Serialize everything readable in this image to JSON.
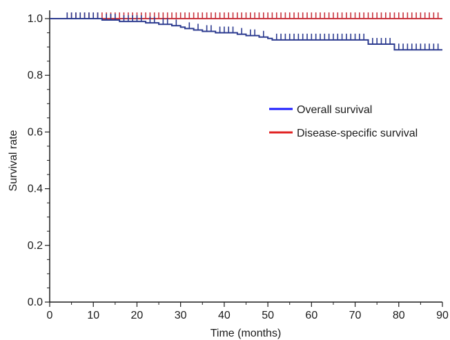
{
  "chart_data": {
    "type": "line",
    "title": "",
    "xlabel": "Time (months)",
    "ylabel": "Survival rate",
    "xlim": [
      0,
      90
    ],
    "ylim": [
      0,
      1.0
    ],
    "x_ticks": [
      0,
      10,
      20,
      30,
      40,
      50,
      60,
      70,
      80,
      90
    ],
    "x_tick_labels": [
      "0",
      "10",
      "20",
      "30",
      "40",
      "50",
      "60",
      "70",
      "80",
      "90"
    ],
    "y_ticks": [
      0.0,
      0.2,
      0.4,
      0.6,
      0.8,
      1.0
    ],
    "y_tick_labels": [
      "0.0",
      "0.2",
      "0.4",
      "0.6",
      "0.8",
      "1.0"
    ],
    "grid": false,
    "legend_position": "right",
    "series": [
      {
        "name": "Overall survival",
        "color": "#2b3a8f",
        "legend_color": "#1a1aff",
        "points": [
          [
            0,
            1.0
          ],
          [
            12,
            1.0
          ],
          [
            12,
            0.995
          ],
          [
            16,
            0.995
          ],
          [
            16,
            0.99
          ],
          [
            22,
            0.99
          ],
          [
            22,
            0.985
          ],
          [
            25,
            0.985
          ],
          [
            25,
            0.98
          ],
          [
            28,
            0.98
          ],
          [
            28,
            0.975
          ],
          [
            30,
            0.975
          ],
          [
            30,
            0.97
          ],
          [
            31,
            0.97
          ],
          [
            31,
            0.965
          ],
          [
            33,
            0.965
          ],
          [
            33,
            0.96
          ],
          [
            35,
            0.96
          ],
          [
            35,
            0.955
          ],
          [
            38,
            0.955
          ],
          [
            38,
            0.95
          ],
          [
            43,
            0.95
          ],
          [
            43,
            0.945
          ],
          [
            45,
            0.945
          ],
          [
            45,
            0.94
          ],
          [
            48,
            0.94
          ],
          [
            48,
            0.935
          ],
          [
            50,
            0.935
          ],
          [
            50,
            0.93
          ],
          [
            51,
            0.93
          ],
          [
            51,
            0.925
          ],
          [
            73,
            0.925
          ],
          [
            73,
            0.91
          ],
          [
            79,
            0.91
          ],
          [
            79,
            0.89
          ],
          [
            90,
            0.89
          ]
        ],
        "censor_x": [
          4,
          5,
          6,
          7,
          8,
          9,
          10,
          11,
          13,
          14,
          15,
          17,
          18,
          19,
          20,
          21,
          23,
          24,
          26,
          27,
          29,
          32,
          34,
          36,
          37,
          39,
          40,
          41,
          42,
          44,
          46,
          47,
          49,
          52,
          53,
          54,
          55,
          56,
          57,
          58,
          59,
          60,
          61,
          62,
          63,
          64,
          65,
          66,
          67,
          68,
          69,
          70,
          71,
          72,
          74,
          75,
          76,
          77,
          78,
          80,
          81,
          82,
          83,
          84,
          85,
          86,
          87,
          88,
          89
        ]
      },
      {
        "name": "Disease-specific survival",
        "color": "#c8323c",
        "legend_color": "#e02020",
        "points": [
          [
            0,
            1.0
          ],
          [
            90,
            1.0
          ]
        ],
        "censor_x": [
          4,
          5,
          6,
          7,
          8,
          9,
          10,
          11,
          12,
          13,
          14,
          15,
          16,
          17,
          18,
          19,
          20,
          21,
          22,
          23,
          24,
          25,
          26,
          27,
          28,
          29,
          30,
          31,
          32,
          33,
          34,
          35,
          36,
          37,
          38,
          39,
          40,
          41,
          42,
          43,
          44,
          45,
          46,
          47,
          48,
          49,
          50,
          51,
          52,
          53,
          54,
          55,
          56,
          57,
          58,
          59,
          60,
          61,
          62,
          63,
          64,
          65,
          66,
          67,
          68,
          69,
          70,
          71,
          72,
          73,
          74,
          75,
          76,
          77,
          78,
          79,
          80,
          81,
          82,
          83,
          84,
          85,
          86,
          87,
          88,
          89
        ]
      }
    ]
  }
}
